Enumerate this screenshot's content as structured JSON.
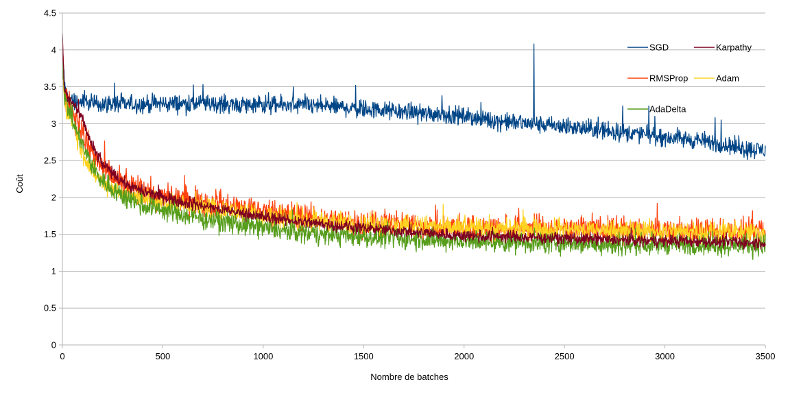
{
  "chart_data": {
    "type": "line",
    "xlabel": "Nombre de batches",
    "ylabel": "Coût",
    "xlim": [
      0,
      3500
    ],
    "ylim": [
      0,
      4.5
    ],
    "x_ticks": [
      "0",
      "500",
      "1000",
      "1500",
      "2000",
      "2500",
      "3000",
      "3500"
    ],
    "y_ticks": [
      "0",
      "0.5",
      "1",
      "1.5",
      "2",
      "2.5",
      "3",
      "3.5",
      "4",
      "4.5"
    ],
    "grid": "horizontal",
    "legend_position": "top-right",
    "series": [
      {
        "name": "SGD",
        "color": "#004586",
        "x": [
          0,
          10,
          30,
          60,
          100,
          200,
          300,
          500,
          700,
          1000,
          1300,
          1500,
          1700,
          1900,
          2000,
          2200,
          2400,
          2600,
          2800,
          3000,
          3200,
          3400,
          3500
        ],
        "y": [
          4.05,
          3.5,
          3.35,
          3.3,
          3.28,
          3.27,
          3.26,
          3.27,
          3.27,
          3.25,
          3.24,
          3.2,
          3.16,
          3.13,
          3.1,
          3.03,
          2.98,
          2.93,
          2.88,
          2.82,
          2.76,
          2.66,
          2.64
        ],
        "noise": 0.06,
        "spikes": [
          [
            260,
            3.55
          ],
          [
            700,
            3.53
          ],
          [
            1150,
            3.5
          ],
          [
            1460,
            3.52
          ],
          [
            1890,
            3.38
          ],
          [
            2348,
            4.08
          ],
          [
            2790,
            3.24
          ],
          [
            2920,
            3.24
          ],
          [
            2950,
            3.1
          ],
          [
            3250,
            3.08
          ],
          [
            3280,
            3.05
          ]
        ]
      },
      {
        "name": "Karpathy",
        "color": "#7e0021",
        "x": [
          0,
          10,
          30,
          60,
          100,
          150,
          200,
          300,
          400,
          500,
          700,
          900,
          1100,
          1300,
          1500,
          1800,
          2000,
          2500,
          3000,
          3500
        ],
        "y": [
          4.2,
          3.45,
          3.33,
          3.25,
          3.05,
          2.68,
          2.45,
          2.2,
          2.08,
          2.0,
          1.88,
          1.78,
          1.7,
          1.64,
          1.58,
          1.52,
          1.48,
          1.44,
          1.41,
          1.38
        ],
        "noise": 0.04,
        "spikes": []
      },
      {
        "name": "RMSProp",
        "color": "#ff420e",
        "x": [
          0,
          10,
          30,
          60,
          100,
          150,
          200,
          300,
          400,
          500,
          700,
          900,
          1100,
          1300,
          1500,
          1800,
          2000,
          2500,
          3000,
          3500
        ],
        "y": [
          4.1,
          3.35,
          3.25,
          3.12,
          2.88,
          2.58,
          2.38,
          2.18,
          2.07,
          2.0,
          1.92,
          1.85,
          1.76,
          1.7,
          1.64,
          1.6,
          1.58,
          1.56,
          1.54,
          1.52
        ],
        "noise": 0.09,
        "spikes": []
      },
      {
        "name": "Adam",
        "color": "#ffd320",
        "x": [
          0,
          10,
          30,
          60,
          100,
          150,
          200,
          300,
          400,
          500,
          700,
          900,
          1100,
          1300,
          1500,
          1800,
          2000,
          2500,
          3000,
          3500
        ],
        "y": [
          4.0,
          3.3,
          3.15,
          2.95,
          2.6,
          2.35,
          2.2,
          2.05,
          1.98,
          1.93,
          1.87,
          1.8,
          1.73,
          1.68,
          1.63,
          1.6,
          1.58,
          1.56,
          1.54,
          1.52
        ],
        "noise": 0.07,
        "spikes": []
      },
      {
        "name": "AdaDelta",
        "color": "#579d1c",
        "x": [
          0,
          10,
          30,
          60,
          100,
          150,
          200,
          300,
          400,
          500,
          700,
          900,
          1100,
          1300,
          1500,
          1800,
          2000,
          2500,
          3000,
          3500
        ],
        "y": [
          4.0,
          3.32,
          3.2,
          3.0,
          2.7,
          2.4,
          2.22,
          2.02,
          1.9,
          1.82,
          1.7,
          1.62,
          1.55,
          1.5,
          1.46,
          1.43,
          1.4,
          1.38,
          1.36,
          1.35
        ],
        "noise": 0.07,
        "spikes": []
      }
    ]
  }
}
